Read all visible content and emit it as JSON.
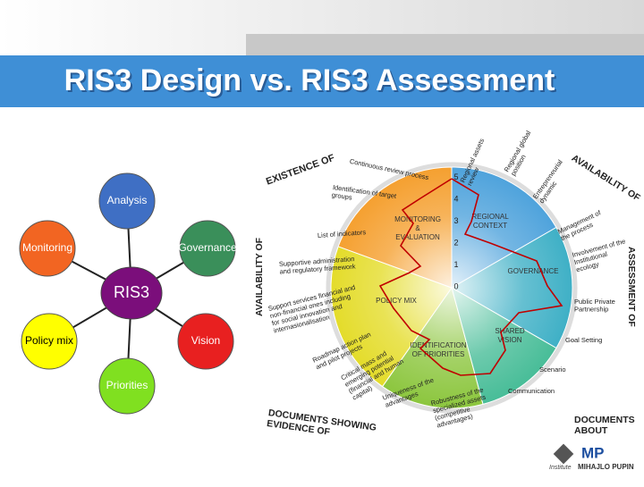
{
  "title": "RIS3 Design vs. RIS3 Assessment",
  "design_diagram": {
    "center": "RIS3",
    "nodes": [
      {
        "label": "Analysis"
      },
      {
        "label": "Governance"
      },
      {
        "label": "Vision"
      },
      {
        "label": "Priorities"
      },
      {
        "label": "Policy mix"
      },
      {
        "label": "Monitoring"
      }
    ]
  },
  "assessment_wheel": {
    "headings": [
      {
        "lines": [
          "EXISTENCE OF"
        ]
      },
      {
        "lines": [
          "AVAILABILITY OF"
        ]
      },
      {
        "lines": [
          "AVAILABILITY OF"
        ]
      },
      {
        "lines": [
          "ASSESSMENT OF"
        ]
      },
      {
        "lines": [
          "DOCUMENTS SHOWING",
          "EVIDENCE OF"
        ]
      },
      {
        "lines": [
          "DOCUMENTS",
          "ABOUT"
        ]
      }
    ],
    "segments": [
      {
        "lines": [
          "REGIONAL",
          "CONTEXT"
        ]
      },
      {
        "lines": [
          "GOVERNANCE"
        ]
      },
      {
        "lines": [
          "SHARED",
          "VISION"
        ]
      },
      {
        "lines": [
          "IDENTIFICATION",
          "OF PRIORITIES"
        ]
      },
      {
        "lines": [
          "POLICY MIX"
        ]
      },
      {
        "lines": [
          "MONITORING",
          "&",
          "EVALUATION"
        ]
      }
    ],
    "scale": [
      0,
      1,
      2,
      3,
      4,
      5
    ],
    "criteria": [
      {
        "lines": [
          "Continuous review process"
        ]
      },
      {
        "lines": [
          "Identification of target",
          "groups"
        ]
      },
      {
        "lines": [
          "List of indicators"
        ]
      },
      {
        "lines": [
          "Supportive administration",
          "and regulatory framework"
        ]
      },
      {
        "lines": [
          "Support services financial and",
          "non-financial ones including",
          "for social innovation and",
          "internasionalisation"
        ]
      },
      {
        "lines": [
          "Roadmap action plan",
          "and pilot projects"
        ]
      },
      {
        "lines": [
          "Critical mass and",
          "emerging potential",
          "(financial and human",
          "capital)"
        ]
      },
      {
        "lines": [
          "Uniqueness of the",
          "advantages"
        ]
      },
      {
        "lines": [
          "Robustness of the",
          "specialized assets",
          "(competitive",
          "advantages)"
        ]
      },
      {
        "lines": [
          "Communication"
        ]
      },
      {
        "lines": [
          "Scenario"
        ]
      },
      {
        "lines": [
          "Goal Setting"
        ]
      },
      {
        "lines": [
          "Public Private",
          "Partnership"
        ]
      },
      {
        "lines": [
          "Involvement of the",
          "Institutional",
          "ecology"
        ]
      },
      {
        "lines": [
          "Management of",
          "the process"
        ]
      },
      {
        "lines": [
          "Entrepreneurial",
          "dynamic"
        ]
      },
      {
        "lines": [
          "Regional global",
          "position"
        ]
      },
      {
        "lines": [
          "Regional assets",
          "review"
        ]
      }
    ]
  },
  "logo": {
    "mark": "MP",
    "institute": "Institute",
    "name": "MIHAJLO PUPIN"
  }
}
